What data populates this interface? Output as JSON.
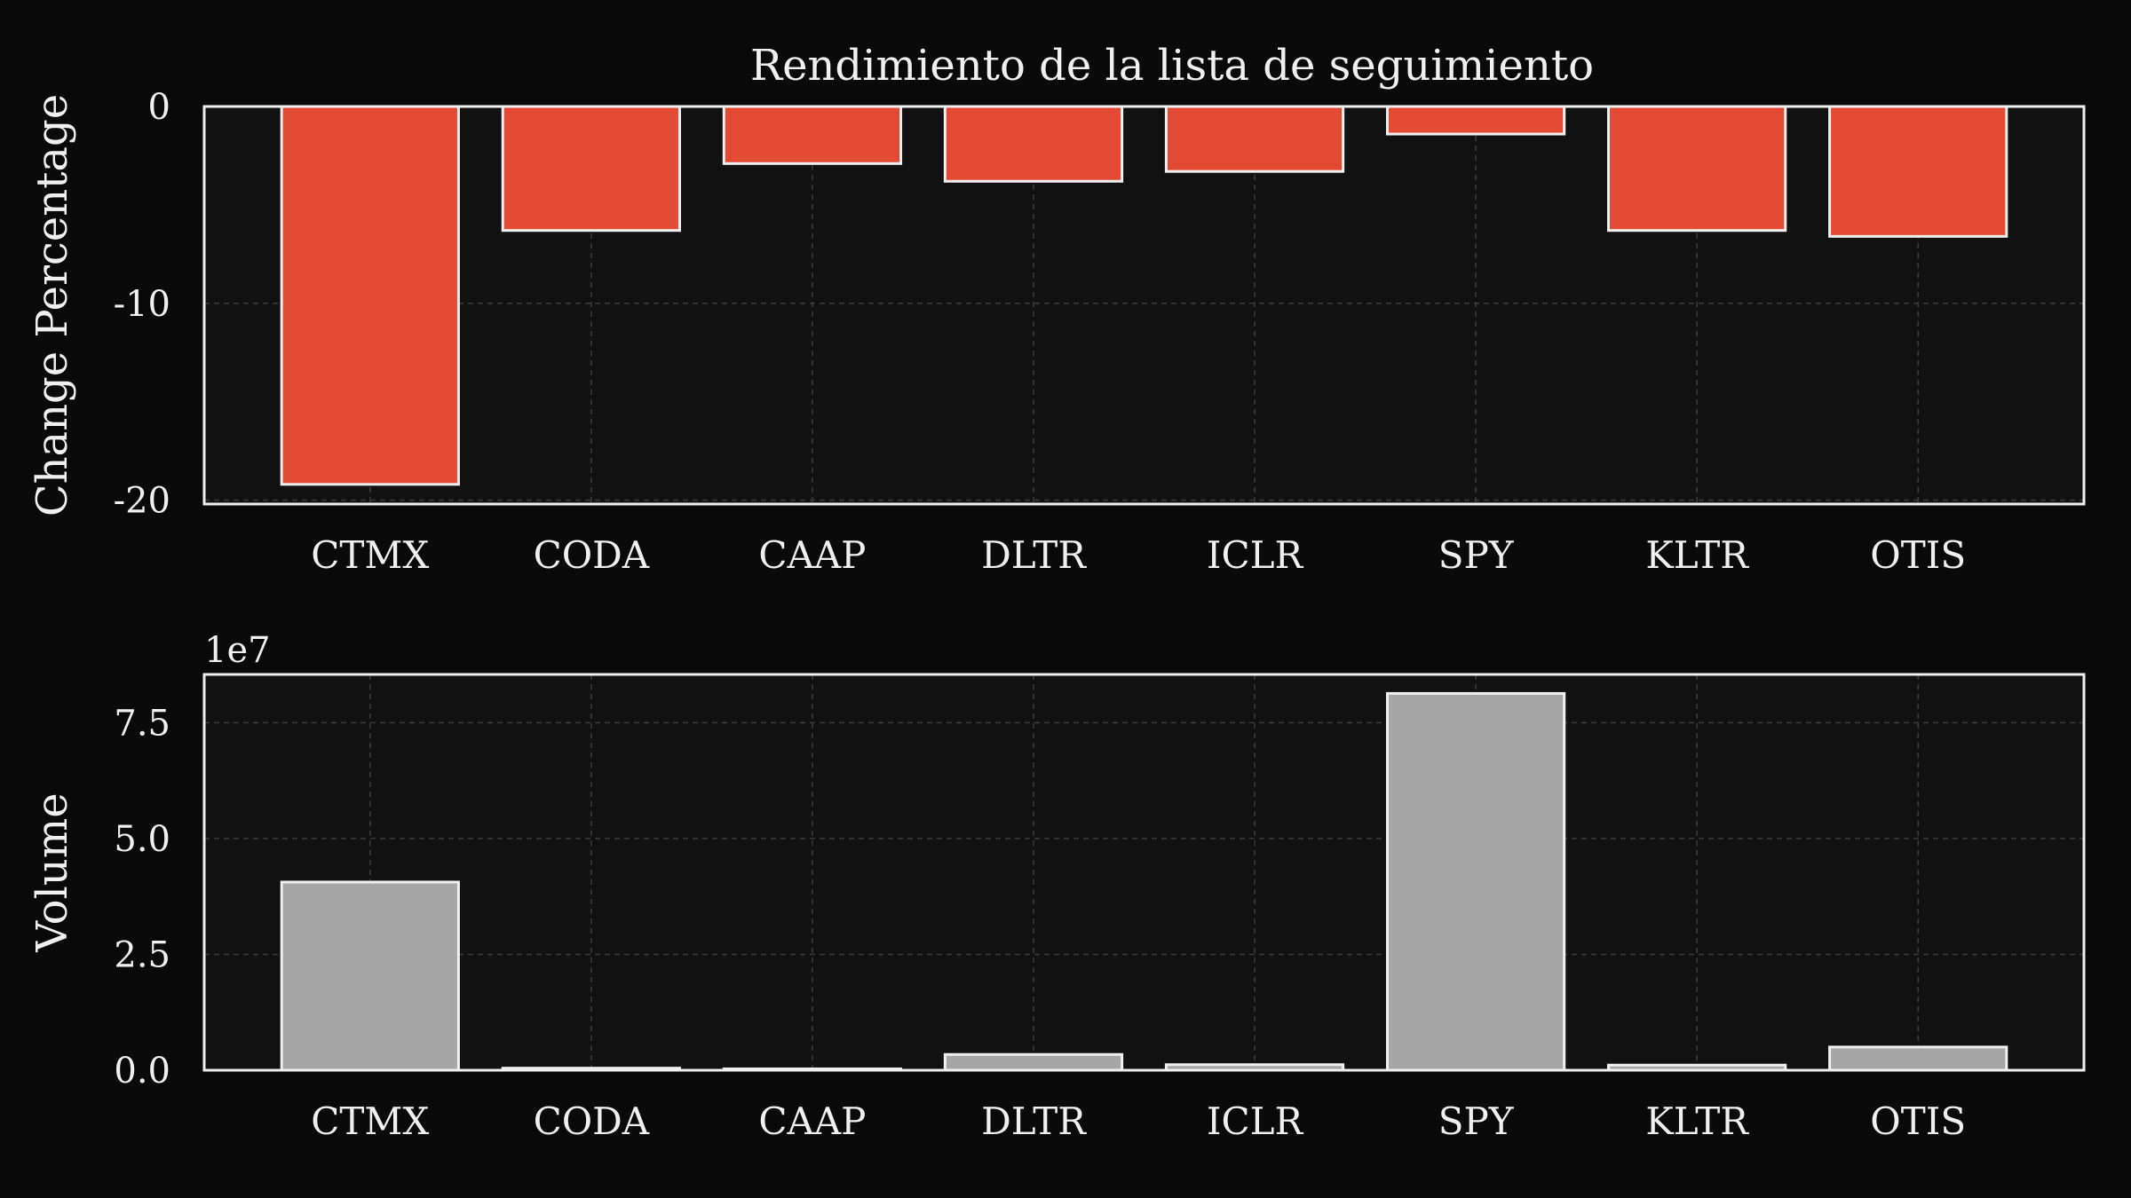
{
  "chart_data": [
    {
      "type": "bar",
      "title": "Rendimiento de la lista de seguimiento",
      "ylabel": "Change Percentage",
      "xlabel": "",
      "categories": [
        "CTMX",
        "CODA",
        "CAAP",
        "DLTR",
        "ICLR",
        "SPY",
        "KLTR",
        "OTIS"
      ],
      "values": [
        -19.2,
        -6.3,
        -2.9,
        -3.8,
        -3.3,
        -1.4,
        -6.3,
        -6.6
      ],
      "ylim": [
        -20.2,
        0
      ],
      "yticks": [
        0,
        -10,
        -20
      ],
      "ytick_labels": [
        "0",
        "-10",
        "-20"
      ],
      "grid": true,
      "color": "#e24a33"
    },
    {
      "type": "bar",
      "title": "",
      "ylabel": "Volume",
      "xlabel": "",
      "offset_text": "1e7",
      "categories": [
        "CTMX",
        "CODA",
        "CAAP",
        "DLTR",
        "ICLR",
        "SPY",
        "KLTR",
        "OTIS"
      ],
      "values": [
        40600000,
        450000,
        300000,
        3400000,
        1200000,
        81300000,
        1100000,
        5000000
      ],
      "ylim": [
        0,
        85400000
      ],
      "yticks": [
        0,
        25000000,
        50000000,
        75000000
      ],
      "ytick_labels": [
        "0.0",
        "2.5",
        "5.0",
        "7.5"
      ],
      "grid": true,
      "color": "#a6a6a6"
    }
  ]
}
